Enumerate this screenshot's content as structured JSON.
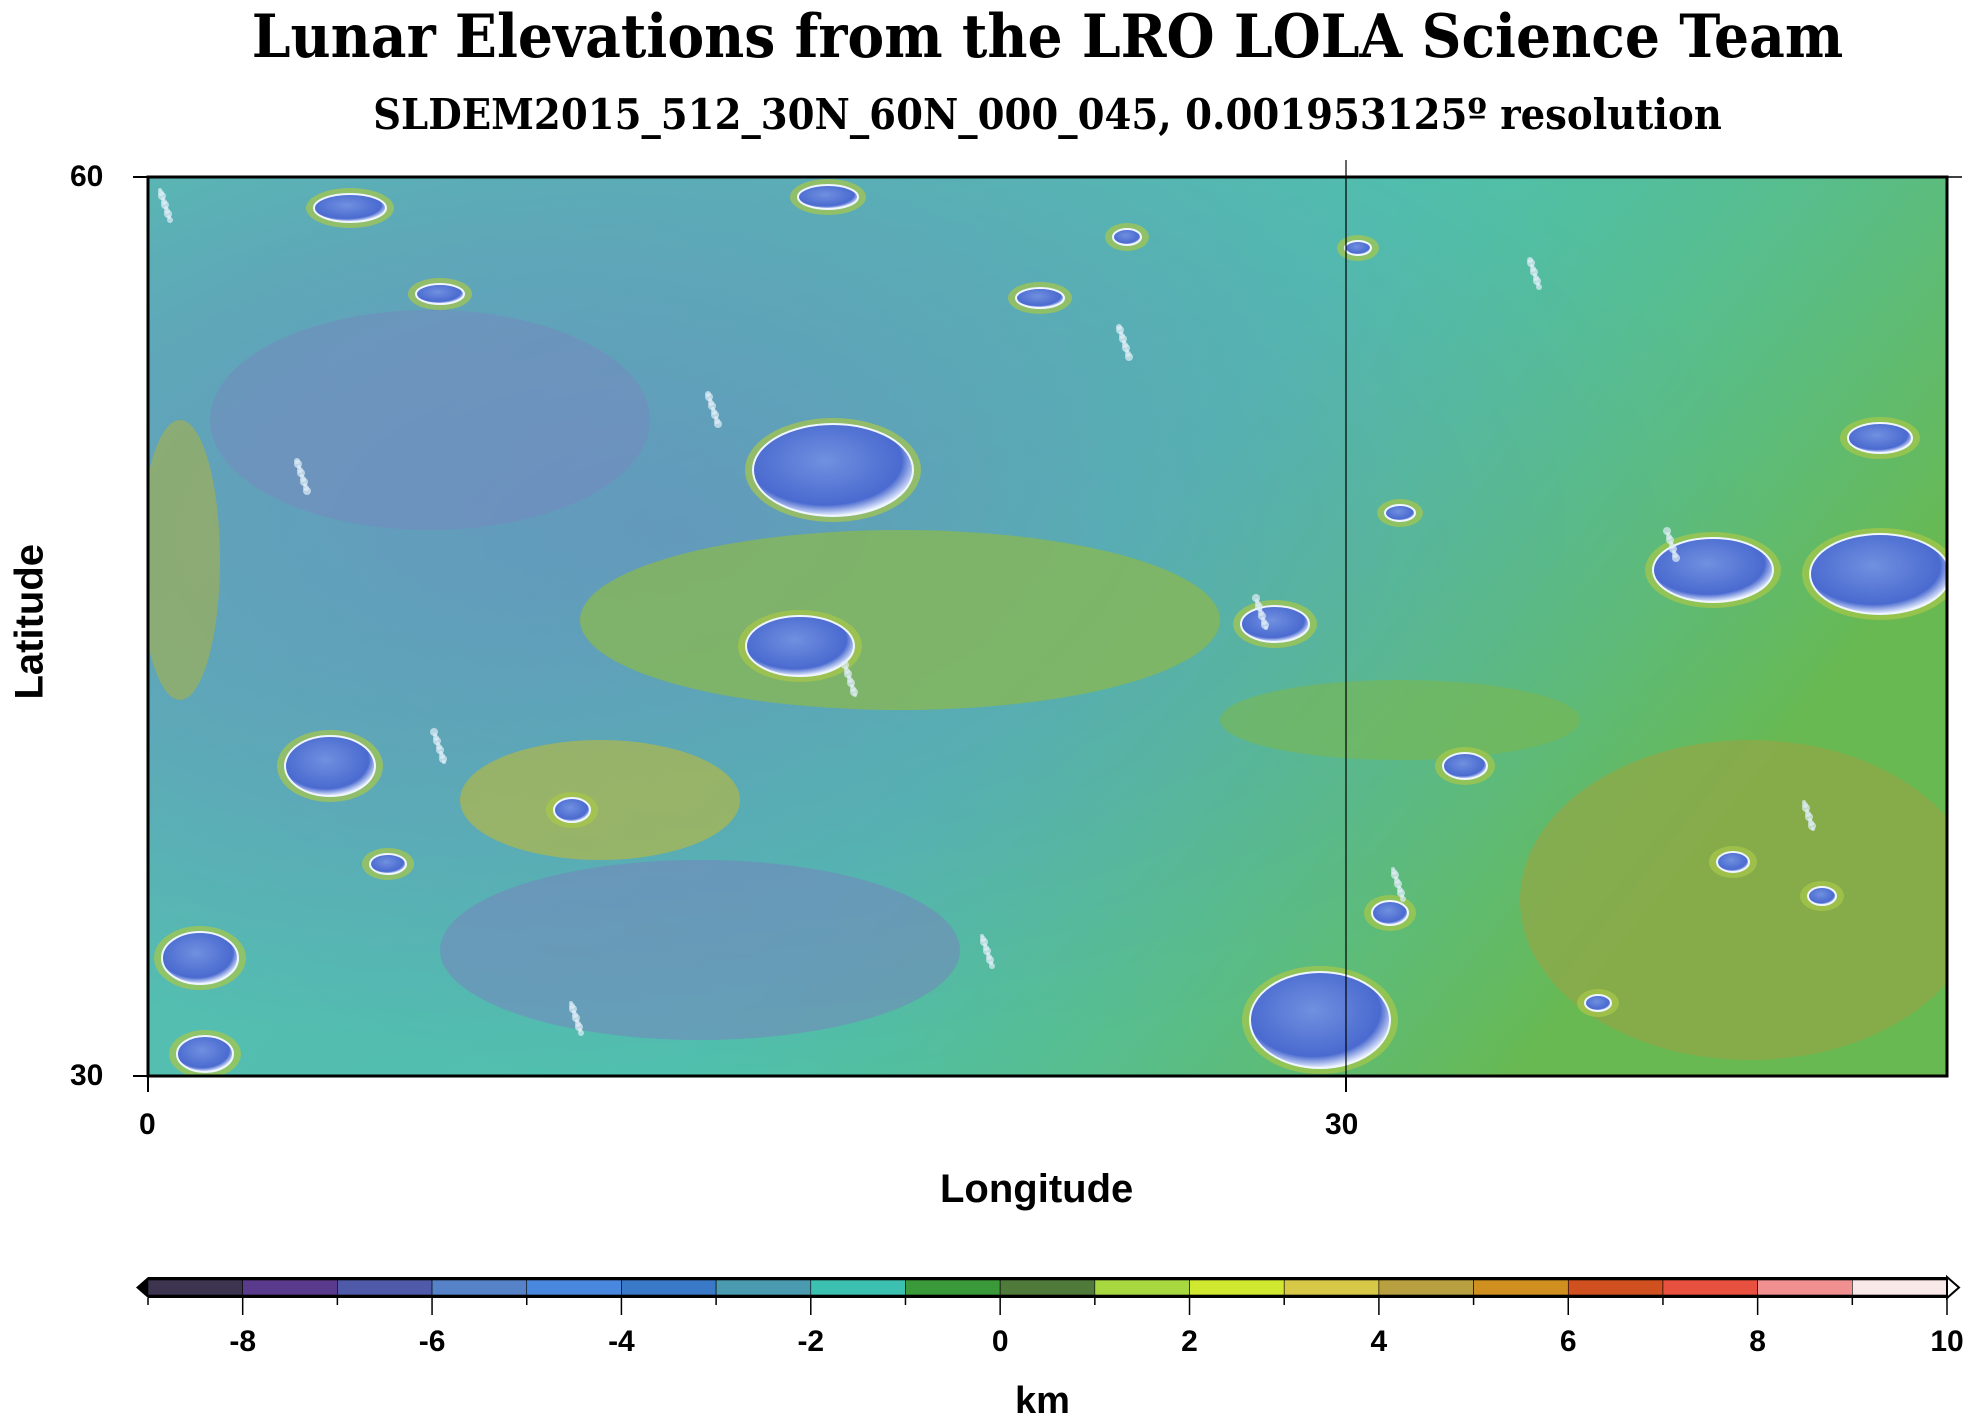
{
  "title": "Lunar Elevations from the LRO LOLA Science Team",
  "subtitle": "SLDEM2015_512_30N_60N_000_045, 0.001953125º resolution",
  "chart_data": {
    "type": "heatmap",
    "title": "Lunar Elevations from the LRO LOLA Science Team",
    "subtitle": "SLDEM2015_512_30N_60N_000_045, 0.001953125º resolution",
    "xlabel": "Longitude",
    "ylabel": "Latitude",
    "xlim": [
      0,
      45
    ],
    "ylim": [
      30,
      60
    ],
    "x_ticks": [
      "0",
      "30"
    ],
    "y_ticks": [
      "30",
      "60"
    ],
    "grid": false,
    "colorbar": {
      "label": "km",
      "range": [
        -9,
        10
      ],
      "ticks": [
        "-8",
        "-6",
        "-4",
        "-2",
        "0",
        "2",
        "4",
        "6",
        "8",
        "10"
      ],
      "colors": [
        "#3d3450",
        "#5a3a8c",
        "#4f5aa8",
        "#5682c8",
        "#4a88e0",
        "#3a78c8",
        "#4a9ab0",
        "#3cc0b0",
        "#3a9a3a",
        "#507a3a",
        "#a8d840",
        "#d0e830",
        "#d8c848",
        "#b8a040",
        "#d09020",
        "#d05020",
        "#e85040",
        "#f09090",
        "#f8e8e8"
      ],
      "placement": "bottom"
    }
  }
}
